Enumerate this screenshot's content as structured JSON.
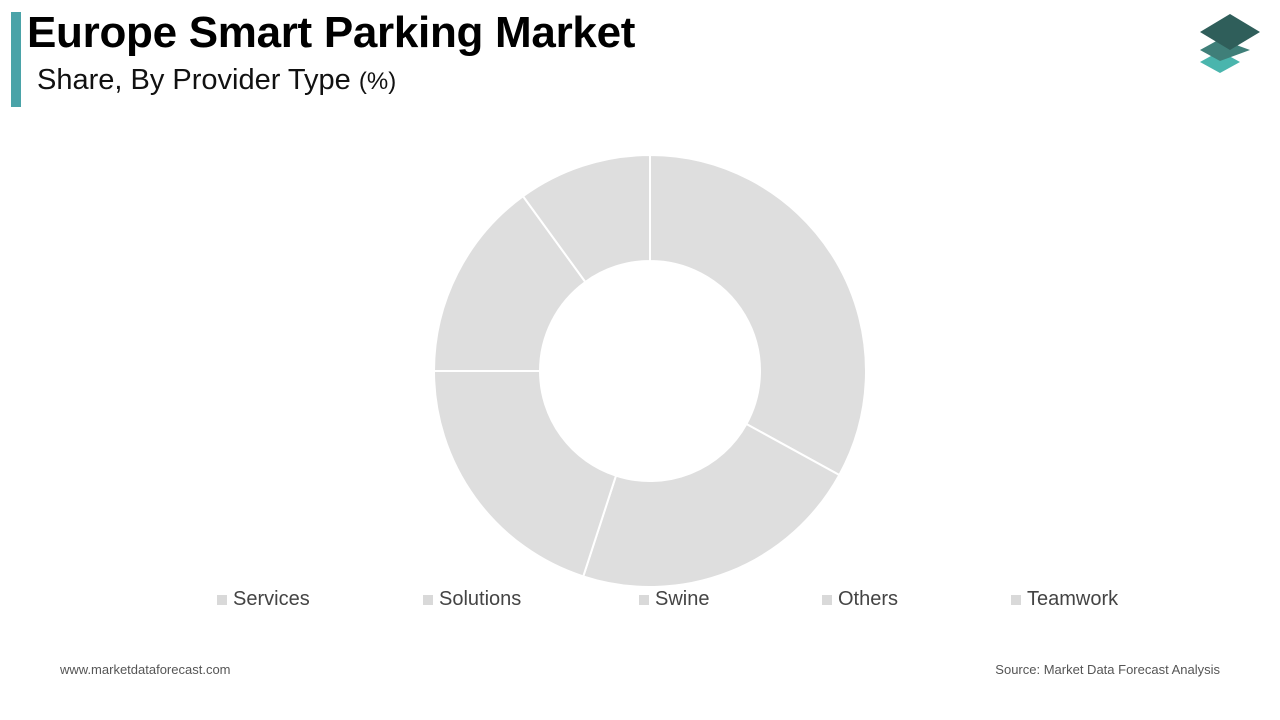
{
  "header": {
    "title": "Europe Smart Parking Market",
    "subtitle": "Share, By Provider Type",
    "unit": "(%)",
    "accent_color": "#4aa3a8"
  },
  "logo": {
    "icon": "stacked-layers-logo-icon",
    "colors": [
      "#2f5e5a",
      "#3f7f79",
      "#4ab5ad"
    ]
  },
  "chart_data": {
    "type": "pie",
    "variant": "donut",
    "categories": [
      "Services",
      "Solutions",
      "Swine",
      "Others",
      "Teamwork"
    ],
    "values": [
      33,
      22,
      20,
      15,
      10
    ],
    "slice_color": "#dedede",
    "legend_swatch_color": "#d9d9d9",
    "legend_placement": "bottom"
  },
  "footer": {
    "website": "www.marketdataforecast.com",
    "source": "Source: Market Data Forecast Analysis"
  }
}
